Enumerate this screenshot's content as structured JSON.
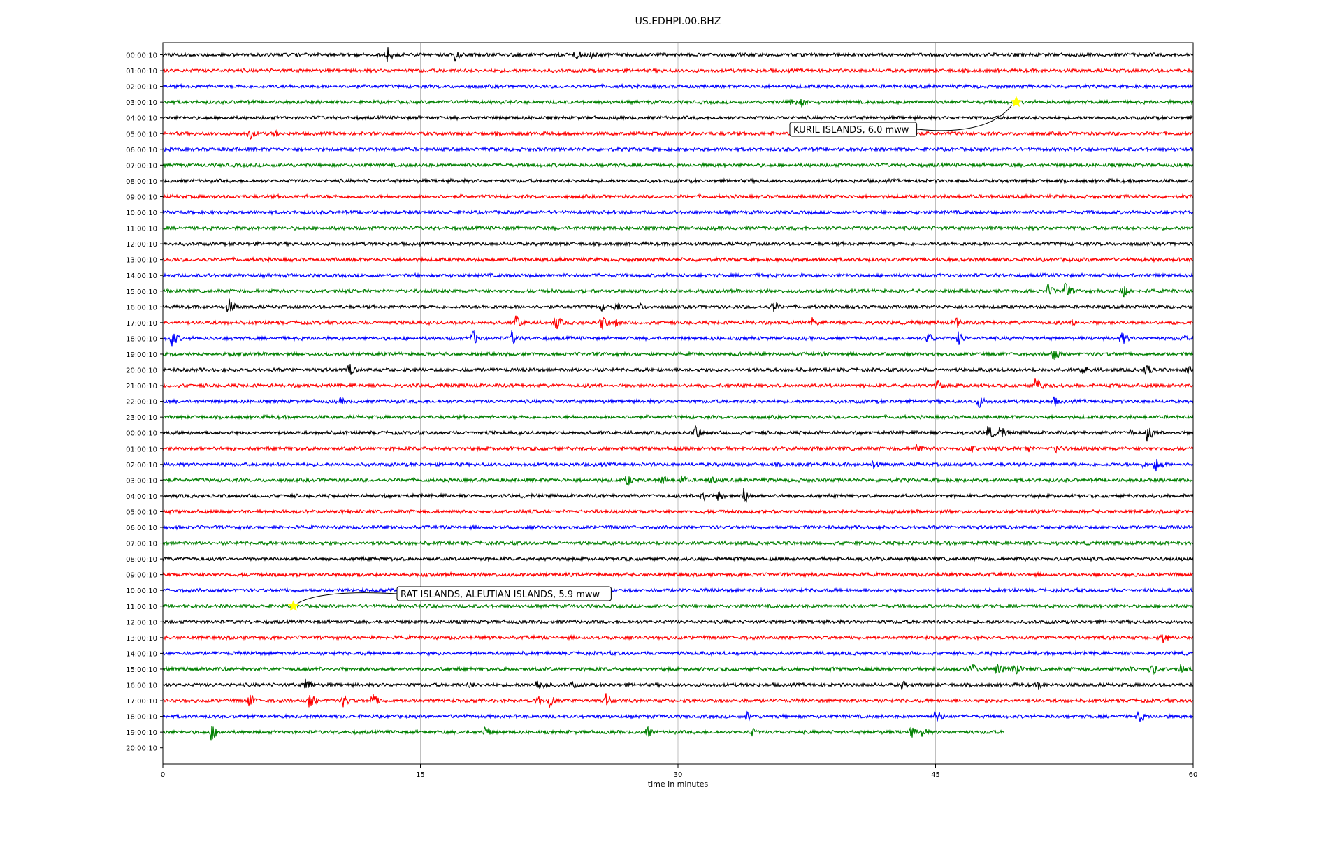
{
  "chart_data": {
    "type": "line",
    "title": "US.EDHPI.00.BHZ",
    "xlabel": "time in minutes",
    "ylabel": "",
    "xlim": [
      0,
      60
    ],
    "xticks": [
      0,
      15,
      30,
      45,
      60
    ],
    "xtick_labels": [
      "0",
      "15",
      "30",
      "45",
      "60"
    ],
    "grid": "vertical",
    "trace_colors": [
      "#000000",
      "#ff0000",
      "#0000ff",
      "#008000"
    ],
    "row_labels": [
      "00:00:10",
      "01:00:10",
      "02:00:10",
      "03:00:10",
      "04:00:10",
      "05:00:10",
      "06:00:10",
      "07:00:10",
      "08:00:10",
      "09:00:10",
      "10:00:10",
      "11:00:10",
      "12:00:10",
      "13:00:10",
      "14:00:10",
      "15:00:10",
      "16:00:10",
      "17:00:10",
      "18:00:10",
      "19:00:10",
      "20:00:10",
      "21:00:10",
      "22:00:10",
      "23:00:10",
      "00:00:10",
      "01:00:10",
      "02:00:10",
      "03:00:10",
      "04:00:10",
      "05:00:10",
      "06:00:10",
      "07:00:10",
      "08:00:10",
      "09:00:10",
      "10:00:10",
      "11:00:10",
      "12:00:10",
      "13:00:10",
      "14:00:10",
      "15:00:10",
      "16:00:10",
      "17:00:10",
      "18:00:10",
      "19:00:10",
      "20:00:10"
    ],
    "last_trace_end_minutes": 49,
    "events": [
      {
        "row": 0,
        "times": [
          13,
          17,
          24,
          24.8
        ]
      },
      {
        "row": 3,
        "times": [
          36.5,
          37.2
        ]
      },
      {
        "row": 5,
        "times": [
          5,
          6.5
        ]
      },
      {
        "row": 15,
        "times": [
          51.5,
          52.5,
          55.8
        ]
      },
      {
        "row": 16,
        "times": [
          3.8,
          25.5,
          26.3,
          27.8,
          35.5
        ]
      },
      {
        "row": 17,
        "times": [
          20.5,
          22.8,
          25.5,
          26.3,
          37.8,
          46.2,
          53
        ]
      },
      {
        "row": 18,
        "times": [
          0.5,
          18,
          20.3,
          44.5,
          46.3,
          55.8,
          59.3
        ]
      },
      {
        "row": 19,
        "times": [
          51.8
        ]
      },
      {
        "row": 20,
        "times": [
          10.8,
          53.5,
          57.2,
          59.6
        ]
      },
      {
        "row": 21,
        "times": [
          45,
          50.8
        ]
      },
      {
        "row": 22,
        "times": [
          10.3,
          47.5,
          51.8
        ]
      },
      {
        "row": 24,
        "times": [
          31,
          48,
          48.7,
          56.3,
          57.3
        ]
      },
      {
        "row": 25,
        "times": [
          43.8,
          47,
          50.3,
          52
        ]
      },
      {
        "row": 26,
        "times": [
          41.3,
          57,
          57.8
        ]
      },
      {
        "row": 27,
        "times": [
          27,
          29,
          30.2,
          31.8
        ]
      },
      {
        "row": 28,
        "times": [
          31.3,
          32.3,
          33.8
        ]
      },
      {
        "row": 35,
        "times": [
          15.4
        ]
      },
      {
        "row": 37,
        "times": [
          58.2
        ]
      },
      {
        "row": 39,
        "times": [
          47,
          48.5,
          49.5,
          56.3,
          57.5,
          59.2
        ]
      },
      {
        "row": 40,
        "times": [
          8.3,
          17.8,
          21.8,
          22.3,
          23.8,
          43,
          51
        ]
      },
      {
        "row": 41,
        "times": [
          5,
          8.5,
          10.5,
          12.2,
          21.7,
          22.5,
          25.8
        ]
      },
      {
        "row": 42,
        "times": [
          34,
          45,
          56.8
        ]
      },
      {
        "row": 43,
        "times": [
          2.8,
          18.7,
          28.2,
          34.2,
          43.5,
          44.2
        ]
      }
    ],
    "annotations": [
      {
        "text": "KURIL ISLANDS, 6.0 mww",
        "row": 3,
        "time": 49.7
      },
      {
        "text": "RAT ISLANDS, ALEUTIAN ISLANDS, 5.9 mww",
        "row": 35,
        "time": 7.6
      }
    ],
    "marker_color": "#ffff00"
  }
}
